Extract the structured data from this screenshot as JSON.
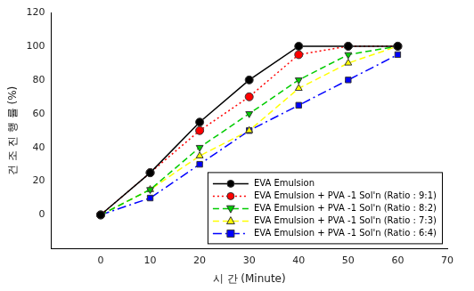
{
  "chart_data": {
    "type": "line",
    "x_label": "시 간 (Minute)",
    "y_label": "건 조 진 행 률 (%)",
    "x": [
      0,
      10,
      20,
      30,
      40,
      50,
      60
    ],
    "xlim": [
      -10,
      70
    ],
    "xticks": [
      0,
      10,
      20,
      30,
      40,
      50,
      60,
      70
    ],
    "ylim": [
      -20,
      120
    ],
    "yticks": [
      0,
      20,
      40,
      60,
      80,
      100,
      120
    ],
    "grid": false,
    "legend": "lower right",
    "series": [
      {
        "name": "EVA Emulsion",
        "color": "#000000",
        "marker": "circle",
        "line_style": "solid",
        "values": [
          0,
          25,
          55,
          80,
          100,
          100,
          100
        ]
      },
      {
        "name": "EVA Emulsion + PVA -1 Sol'n (Ratio : 9:1)",
        "color": "#ff0000",
        "marker": "circle",
        "line_style": "dotted",
        "values": [
          0,
          25,
          50,
          70,
          95,
          100,
          100
        ]
      },
      {
        "name": "EVA Emulsion + PVA -1 Sol'n (Ratio : 8:2)",
        "color": "#00cc00",
        "marker": "triangle-down",
        "line_style": "dashed",
        "values": [
          0,
          15,
          40,
          60,
          80,
          95,
          100
        ]
      },
      {
        "name": "EVA Emulsion + PVA -1 Sol'n (Ratio : 7:3)",
        "color": "#ffff00",
        "marker": "triangle",
        "line_style": "dashed",
        "values": [
          0,
          15,
          35,
          50,
          75,
          90,
          100
        ]
      },
      {
        "name": "EVA Emulsion + PVA -1 Sol'n (Ratio : 6:4)",
        "color": "#0000ff",
        "marker": "square",
        "line_style": "dashdot",
        "values": [
          0,
          10,
          30,
          50,
          65,
          80,
          95
        ]
      }
    ]
  }
}
